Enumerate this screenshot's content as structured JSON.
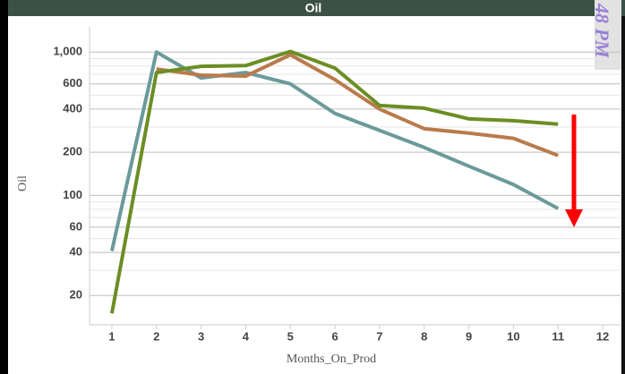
{
  "chart_data": {
    "type": "line",
    "title": "Oil",
    "overlay_text": "48 PM",
    "x_label": "Months_On_Prod",
    "y_label": "Oil",
    "x": [
      1,
      2,
      3,
      4,
      5,
      6,
      7,
      8,
      9,
      10,
      11
    ],
    "series": [
      {
        "color": "#6b9a9a",
        "values": [
          41,
          1000,
          660,
          720,
          600,
          373,
          284,
          216,
          160,
          119,
          81
        ]
      },
      {
        "color": "#b97b4c",
        "values": [
          null,
          762,
          690,
          680,
          957,
          642,
          400,
          292,
          272,
          250,
          190
        ]
      },
      {
        "color": "#6b8e23",
        "values": [
          15,
          720,
          795,
          805,
          1010,
          773,
          424,
          406,
          342,
          332,
          314
        ]
      }
    ],
    "xlim": [
      0.5,
      12.4
    ],
    "xticks": [
      1,
      2,
      3,
      4,
      5,
      6,
      7,
      8,
      9,
      10,
      11,
      12
    ],
    "ylim": [
      12.5,
      1500
    ],
    "y_log": true,
    "yticks": [
      20,
      40,
      60,
      100,
      200,
      400,
      600,
      {
        "value": 1000,
        "label": "1,000"
      }
    ],
    "y_minor_gridlines": [
      30,
      50,
      70,
      80,
      90,
      300,
      500,
      700,
      800,
      900
    ],
    "grid": true
  }
}
